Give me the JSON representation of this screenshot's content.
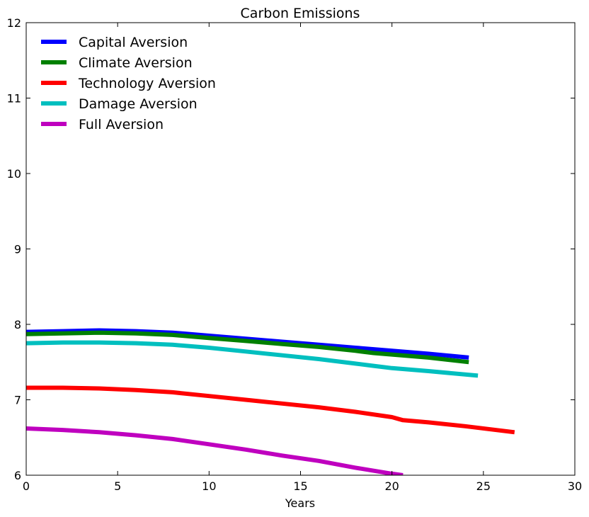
{
  "chart_data": {
    "type": "line",
    "title": "Carbon Emissions",
    "xlabel": "Years",
    "ylabel": "",
    "xlim": [
      0,
      30
    ],
    "ylim": [
      6,
      12
    ],
    "xticks": [
      0,
      5,
      10,
      15,
      20,
      25,
      30
    ],
    "yticks": [
      6,
      7,
      8,
      9,
      10,
      11,
      12
    ],
    "grid": false,
    "legend_position": "top-left",
    "series": [
      {
        "name": "Capital Aversion",
        "color": "#0000ff",
        "x": [
          0,
          2,
          4,
          6,
          8,
          10,
          12,
          14,
          16,
          18,
          19,
          20,
          22,
          24.2
        ],
        "y": [
          7.9,
          7.91,
          7.92,
          7.91,
          7.89,
          7.85,
          7.81,
          7.77,
          7.73,
          7.69,
          7.67,
          7.65,
          7.61,
          7.56
        ]
      },
      {
        "name": "Climate Aversion",
        "color": "#008000",
        "x": [
          0,
          2,
          4,
          6,
          8,
          10,
          12,
          14,
          16,
          18,
          19,
          20,
          22,
          24.2
        ],
        "y": [
          7.87,
          7.88,
          7.89,
          7.88,
          7.86,
          7.82,
          7.78,
          7.74,
          7.7,
          7.65,
          7.62,
          7.6,
          7.56,
          7.5
        ]
      },
      {
        "name": "Technology Aversion",
        "color": "#ff0000",
        "x": [
          0,
          2,
          4,
          6,
          8,
          10,
          12,
          14,
          16,
          18,
          20,
          20.6,
          22,
          24,
          26.7
        ],
        "y": [
          7.16,
          7.16,
          7.15,
          7.13,
          7.1,
          7.05,
          7.0,
          6.95,
          6.9,
          6.84,
          6.77,
          6.73,
          6.7,
          6.65,
          6.57
        ]
      },
      {
        "name": "Damage Aversion",
        "color": "#00bfbf",
        "x": [
          0,
          2,
          4,
          6,
          8,
          10,
          12,
          14,
          16,
          18,
          19,
          20,
          22,
          24.7
        ],
        "y": [
          7.75,
          7.76,
          7.76,
          7.75,
          7.73,
          7.69,
          7.64,
          7.59,
          7.54,
          7.48,
          7.45,
          7.42,
          7.38,
          7.32
        ]
      },
      {
        "name": "Full Aversion",
        "color": "#bf00bf",
        "x": [
          0,
          2,
          4,
          6,
          8,
          10,
          12,
          14,
          16,
          18,
          20,
          20.6
        ],
        "y": [
          6.62,
          6.6,
          6.57,
          6.53,
          6.48,
          6.41,
          6.34,
          6.26,
          6.19,
          6.1,
          6.02,
          6.0
        ]
      }
    ]
  }
}
